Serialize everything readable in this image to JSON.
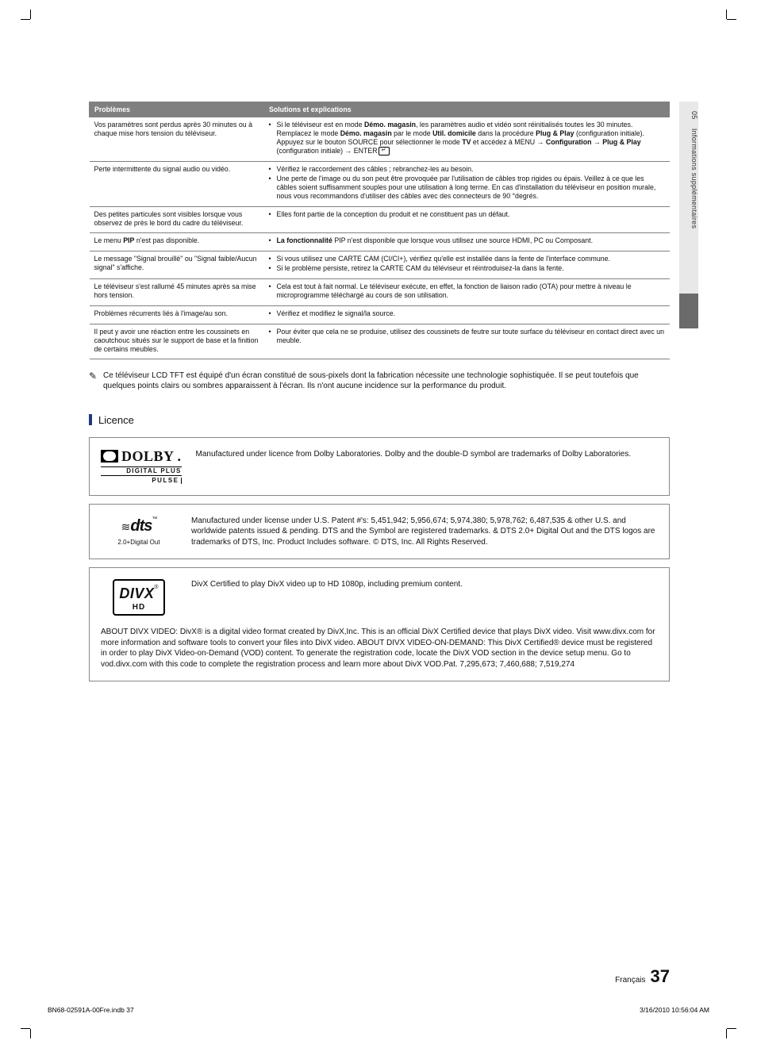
{
  "colors": {
    "table_header_bg": "#808080",
    "table_header_fg": "#ffffff",
    "table_border": "#808080",
    "section_bar": "#1f3a7a",
    "side_tab_bg": "#e8e8e8",
    "side_tab_dark": "#6b6b6b",
    "text": "#111111",
    "page_bg": "#ffffff"
  },
  "typography": {
    "body_pt": 9,
    "note_pt": 10,
    "heading_pt": 13,
    "page_num_pt": 22,
    "font_family": "Arial"
  },
  "side_tab": {
    "number": "05",
    "label": "Informations supplémentaires"
  },
  "table": {
    "columns": [
      "Problèmes",
      "Solutions et explications"
    ],
    "rows": [
      {
        "problem": "Vos paramètres sont perdus après 30 minutes ou à chaque mise hors tension du téléviseur.",
        "solutions_html": "Si le téléviseur est en mode <span class='bold'>Démo. magasin</span>, les paramètres audio et vidéo sont réinitialisés toutes les 30 minutes. Remplacez le mode <span class='bold'>Démo. magasin</span> par le mode <span class='bold'>Util. domicile</span> dans la procédure <span class='bold'>Plug & Play</span> (configuration initiale). Appuyez sur le bouton SOURCE pour sélectionner le mode <span class='bold'>TV</span> et accédez à MENU → <span class='bold'>Configuration</span> → <span class='bold'>Plug & Play</span> (configuration initiale) → ENTER<span class='enter-icon'>↵</span>"
      },
      {
        "problem": "Perte intermittente du signal audio ou vidéo.",
        "solutions": [
          "Vérifiez le raccordement des câbles ; rebranchez-les au besoin.",
          "Une perte de l'image ou du son peut être provoquée par l'utilisation de câbles trop rigides ou épais. Veillez à ce que les câbles soient suffisamment souples pour une utilisation à long terme. En cas d'installation du téléviseur en position murale, nous vous recommandons d'utiliser des câbles avec des connecteurs de 90 °degrés."
        ]
      },
      {
        "problem": "Des petites particules sont visibles lorsque vous observez de près le bord du cadre du téléviseur.",
        "solutions": [
          "Elles font partie de la conception du produit et ne constituent pas un défaut."
        ]
      },
      {
        "problem_html": "Le menu <span class='bold'>PIP</span> n'est pas disponible.",
        "solutions_html_list": [
          "<span class='bold'>La fonctionnalité</span> PIP n'est disponible que lorsque vous utilisez une source HDMI, PC ou Composant."
        ]
      },
      {
        "problem": "Le message \"Signal brouillé\" ou \"Signal faible/Aucun signal\" s'affiche.",
        "solutions": [
          "Si vous utilisez une CARTE CAM (CI/CI+), vérifiez qu'elle est installée dans la fente de l'interface commune.",
          "Si le problème persiste, retirez la CARTE CAM du téléviseur et réintroduisez-la dans la fente."
        ]
      },
      {
        "problem": "Le téléviseur s'est rallumé 45 minutes après sa mise hors tension.",
        "solutions": [
          "Cela est tout à fait normal. Le téléviseur exécute, en effet, la fonction de liaison radio (OTA) pour mettre à niveau le microprogramme téléchargé au cours de son utilisation."
        ]
      },
      {
        "problem": "Problèmes récurrents liés à l'image/au son.",
        "solutions": [
          "Vérifiez et modifiez le signal/la source."
        ]
      },
      {
        "problem": "Il peut y avoir une réaction entre les coussinets en caoutchouc situés sur le support de base et la finition de certains meubles.",
        "solutions": [
          "Pour éviter que cela ne se produise, utilisez des coussinets de feutre sur toute surface du téléviseur en contact direct avec un meuble."
        ]
      }
    ]
  },
  "note": {
    "icon": "✎",
    "text": "Ce téléviseur LCD TFT est équipé d'un écran constitué de sous-pixels dont la fabrication nécessite une technologie sophistiquée. Il se peut toutefois que quelques points clairs ou sombres apparaissent à l'écran. Ils n'ont aucune incidence sur la performance du produit."
  },
  "section_heading": "Licence",
  "licence": {
    "dolby": {
      "logo": {
        "word": "DOLBY",
        "sub1": "DIGITAL PLUS",
        "sub2": "PULSE"
      },
      "text": "Manufactured under licence from Dolby Laboratories. Dolby and the double-D symbol are trademarks of Dolby Laboratories."
    },
    "dts": {
      "logo": {
        "word": "dts",
        "sub": "2.0+Digital Out"
      },
      "text": "Manufactured under license under U.S. Patent #'s: 5,451,942; 5,956,674; 5,974,380; 5,978,762; 6,487,535 & other U.S. and worldwide patents issued & pending. DTS and the Symbol are registered trademarks. & DTS 2.0+ Digital Out and the DTS logos are trademarks of DTS, Inc. Product Includes software. © DTS, Inc. All Rights Reserved."
    },
    "divx": {
      "logo": {
        "word": "DIVX",
        "sub": "HD"
      },
      "text": "DivX Certified to play DivX video up to HD 1080p, including premium content.",
      "about": "ABOUT DIVX VIDEO: DivX® is a digital video format created by DivX,Inc. This is an official DivX Certified device that plays DivX video. Visit www.divx.com for more information and software tools to convert your files into DivX video. ABOUT DIVX VIDEO-ON-DEMAND: This DivX Certified® device must be registered in order to play DivX Video-on-Demand (VOD) content. To generate the registration code, locate the DivX VOD section in the device setup menu. Go to vod.divx.com with this code to complete the registration process and learn more about DivX VOD.Pat. 7,295,673; 7,460,688; 7,519,274"
    }
  },
  "footer": {
    "lang": "Français",
    "page": "37",
    "print_left": "BN68-02591A-00Fre.indb   37",
    "print_right": "3/16/2010   10:56:04 AM"
  }
}
